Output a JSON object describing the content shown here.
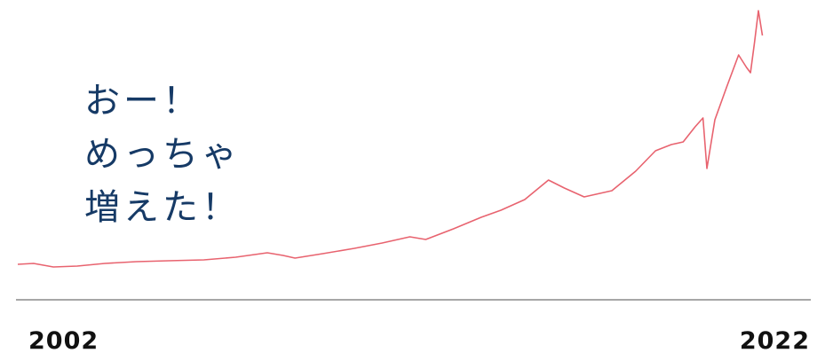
{
  "chart_data": {
    "type": "line",
    "annotation": [
      "おー！",
      "めっちゃ",
      "増えた！"
    ],
    "xlim": [
      2002,
      2022
    ],
    "xticks": [
      2002,
      2022
    ],
    "ylim": [
      0,
      330
    ],
    "series": [
      {
        "color": "#e8636f",
        "x": [
          2002.0,
          2002.4,
          2002.9,
          2003.5,
          2004.2,
          2005.0,
          2005.8,
          2006.7,
          2007.5,
          2008.3,
          2008.7,
          2009.0,
          2009.7,
          2010.5,
          2011.2,
          2011.9,
          2012.3,
          2013.0,
          2013.7,
          2014.2,
          2014.8,
          2015.4,
          2015.8,
          2016.3,
          2017.0,
          2017.6,
          2018.1,
          2018.5,
          2018.8,
          2019.1,
          2019.3,
          2019.4,
          2019.6,
          2019.9,
          2020.2,
          2020.4,
          2020.5,
          2020.6,
          2020.7,
          2020.8
        ],
        "values": [
          40,
          41,
          37,
          38,
          41,
          43,
          44,
          45,
          48,
          53,
          50,
          47,
          52,
          58,
          64,
          71,
          68,
          80,
          93,
          101,
          113,
          135,
          126,
          116,
          123,
          145,
          168,
          175,
          178,
          195,
          205,
          148,
          203,
          240,
          276,
          262,
          256,
          290,
          326,
          298
        ]
      }
    ]
  }
}
